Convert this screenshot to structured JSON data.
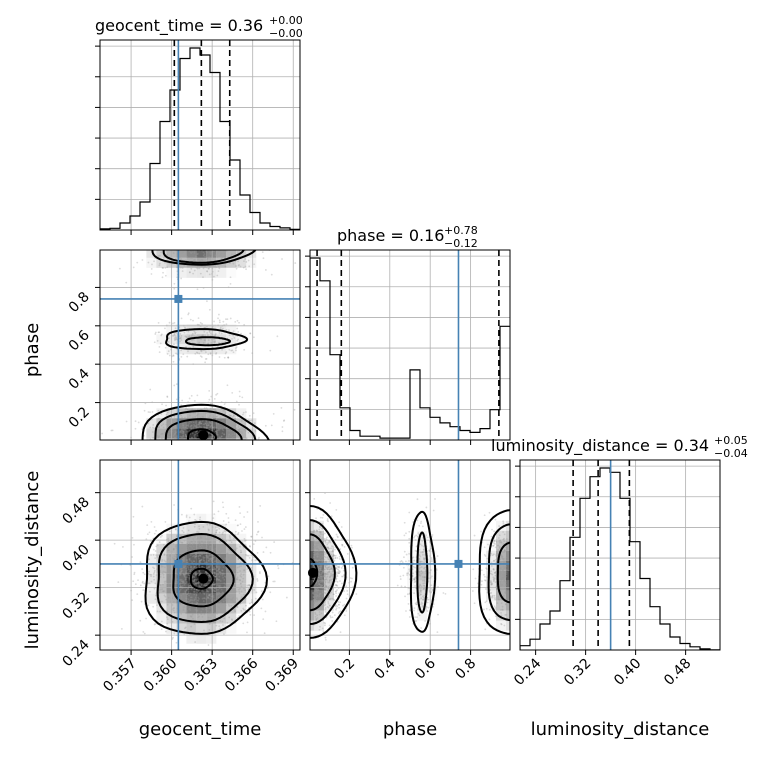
{
  "chart_data": {
    "type": "corner",
    "parameters": [
      "geocent_time",
      "phase",
      "luminosity_distance"
    ],
    "axis_labels": [
      "geocent_time",
      "phase",
      "luminosity_distance"
    ],
    "titles": [
      {
        "name": "geocent_time",
        "text": "geocent_time = 0.36",
        "sup": "+0.00",
        "sub": "−0.00"
      },
      {
        "name": "phase",
        "text": "phase = 0.16",
        "sup": "+0.78",
        "sub": "−0.12"
      },
      {
        "name": "luminosity_distance",
        "text": "luminosity_distance = 0.34",
        "sup": "+0.05",
        "sub": "−0.04"
      }
    ],
    "ranges": {
      "geocent_time": [
        0.3547,
        0.3695
      ],
      "phase": [
        0.005,
        0.995
      ],
      "luminosity_distance": [
        0.215,
        0.535
      ]
    },
    "ticks": {
      "geocent_time": [
        0.357,
        0.36,
        0.363,
        0.366,
        0.369
      ],
      "phase": [
        0.2,
        0.4,
        0.6,
        0.8
      ],
      "luminosity_distance": [
        0.24,
        0.32,
        0.4,
        0.48
      ]
    },
    "tick_labels": {
      "geocent_time": [
        "0.357",
        "0.360",
        "0.363",
        "0.366",
        "0.369"
      ],
      "phase": [
        "0.2",
        "0.4",
        "0.6",
        "0.8"
      ],
      "luminosity_distance": [
        "0.24",
        "0.32",
        "0.40",
        "0.48"
      ]
    },
    "quantiles": {
      "geocent_time": [
        0.3602,
        0.3622,
        0.3643
      ],
      "phase": [
        0.04,
        0.16,
        0.94
      ],
      "luminosity_distance": [
        0.3,
        0.34,
        0.39
      ]
    },
    "truths": {
      "geocent_time": 0.3605,
      "phase": 0.74,
      "luminosity_distance": 0.36
    },
    "histograms": {
      "geocent_time": [
        0.3,
        0.5,
        2,
        4,
        8,
        19,
        31,
        40,
        49,
        52,
        50,
        45,
        31,
        20,
        10,
        5,
        2,
        1,
        0.6,
        0.2
      ],
      "phase": [
        0.96,
        0.84,
        0.45,
        0.17,
        0.05,
        0.02,
        0.02,
        0.01,
        0.01,
        0.01,
        0.37,
        0.17,
        0.12,
        0.09,
        0.07,
        0.05,
        0.04,
        0.06,
        0.16,
        0.6
      ],
      "luminosity_distance": [
        0.02,
        0.05,
        0.12,
        0.18,
        0.32,
        0.52,
        0.7,
        0.8,
        0.84,
        0.82,
        0.7,
        0.5,
        0.33,
        0.2,
        0.12,
        0.06,
        0.03,
        0.015,
        0.005,
        0.001
      ]
    },
    "grid": true
  }
}
